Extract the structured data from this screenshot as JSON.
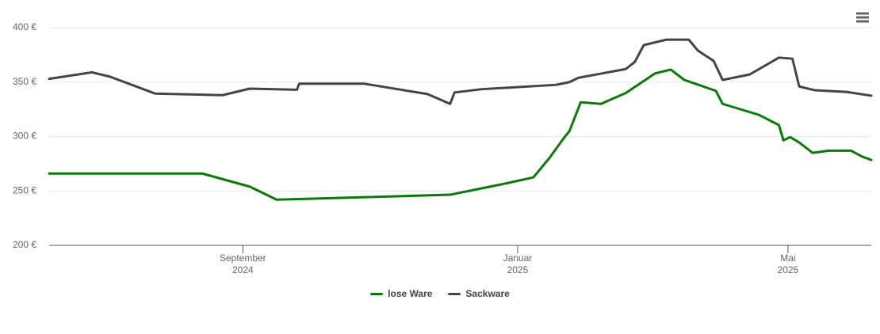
{
  "chart_data": {
    "type": "line",
    "xlim": [
      "2024-06-07",
      "2025-06-07"
    ],
    "xticks": [
      {
        "value": "2024-09-01",
        "label": "September 2024"
      },
      {
        "value": "2025-01-01",
        "label": "Januar 2025"
      },
      {
        "value": "2025-05-01",
        "label": "Mai 2025"
      }
    ],
    "ylim": [
      200,
      400
    ],
    "yticks": [
      {
        "value": 200,
        "label": "200 €"
      },
      {
        "value": 250,
        "label": "250 €"
      },
      {
        "value": 300,
        "label": "300 €"
      },
      {
        "value": 350,
        "label": "350 €"
      },
      {
        "value": 400,
        "label": "400 €"
      }
    ],
    "grid": true,
    "legend": "bottom",
    "series": [
      {
        "name": "lose Ware",
        "color": "#0a7a0a",
        "x": [
          "2024-06-07",
          "2024-08-14",
          "2024-09-04",
          "2024-09-16",
          "2024-12-02",
          "2024-12-27",
          "2025-01-08",
          "2025-01-15",
          "2025-01-22",
          "2025-01-24",
          "2025-01-29",
          "2025-02-07",
          "2025-02-18",
          "2025-03-03",
          "2025-03-10",
          "2025-03-16",
          "2025-03-30",
          "2025-04-02",
          "2025-04-18",
          "2025-04-27",
          "2025-04-29",
          "2025-05-02",
          "2025-05-06",
          "2025-05-12",
          "2025-05-19",
          "2025-05-29",
          "2025-06-03",
          "2025-06-07"
        ],
        "values": [
          266,
          266,
          254,
          242,
          246.5,
          257,
          262.5,
          280,
          300,
          305,
          331.5,
          330,
          340,
          358,
          361.5,
          352,
          342,
          330,
          320,
          310.5,
          296.5,
          299.5,
          294.5,
          285,
          287,
          287,
          281.5,
          278.5
        ]
      },
      {
        "name": "Sackware",
        "color": "#444444",
        "x": [
          "2024-06-07",
          "2024-06-26",
          "2024-07-04",
          "2024-07-24",
          "2024-08-23",
          "2024-09-04",
          "2024-09-25",
          "2024-09-26",
          "2024-10-25",
          "2024-11-22",
          "2024-12-02",
          "2024-12-04",
          "2024-12-16",
          "2025-01-18",
          "2025-01-24",
          "2025-01-28",
          "2025-02-18",
          "2025-02-22",
          "2025-02-26",
          "2025-03-08",
          "2025-03-18",
          "2025-03-22",
          "2025-03-29",
          "2025-04-02",
          "2025-04-14",
          "2025-04-27",
          "2025-05-03",
          "2025-05-06",
          "2025-05-13",
          "2025-05-27",
          "2025-06-07"
        ],
        "values": [
          353,
          359,
          355,
          339.5,
          338,
          344,
          343,
          348.5,
          348.5,
          339,
          330,
          340.5,
          343.5,
          347.5,
          350,
          354,
          362,
          368.5,
          384,
          389,
          389,
          379,
          369.5,
          352,
          357,
          372.5,
          371.5,
          346,
          342.5,
          341,
          337.5
        ]
      }
    ]
  }
}
